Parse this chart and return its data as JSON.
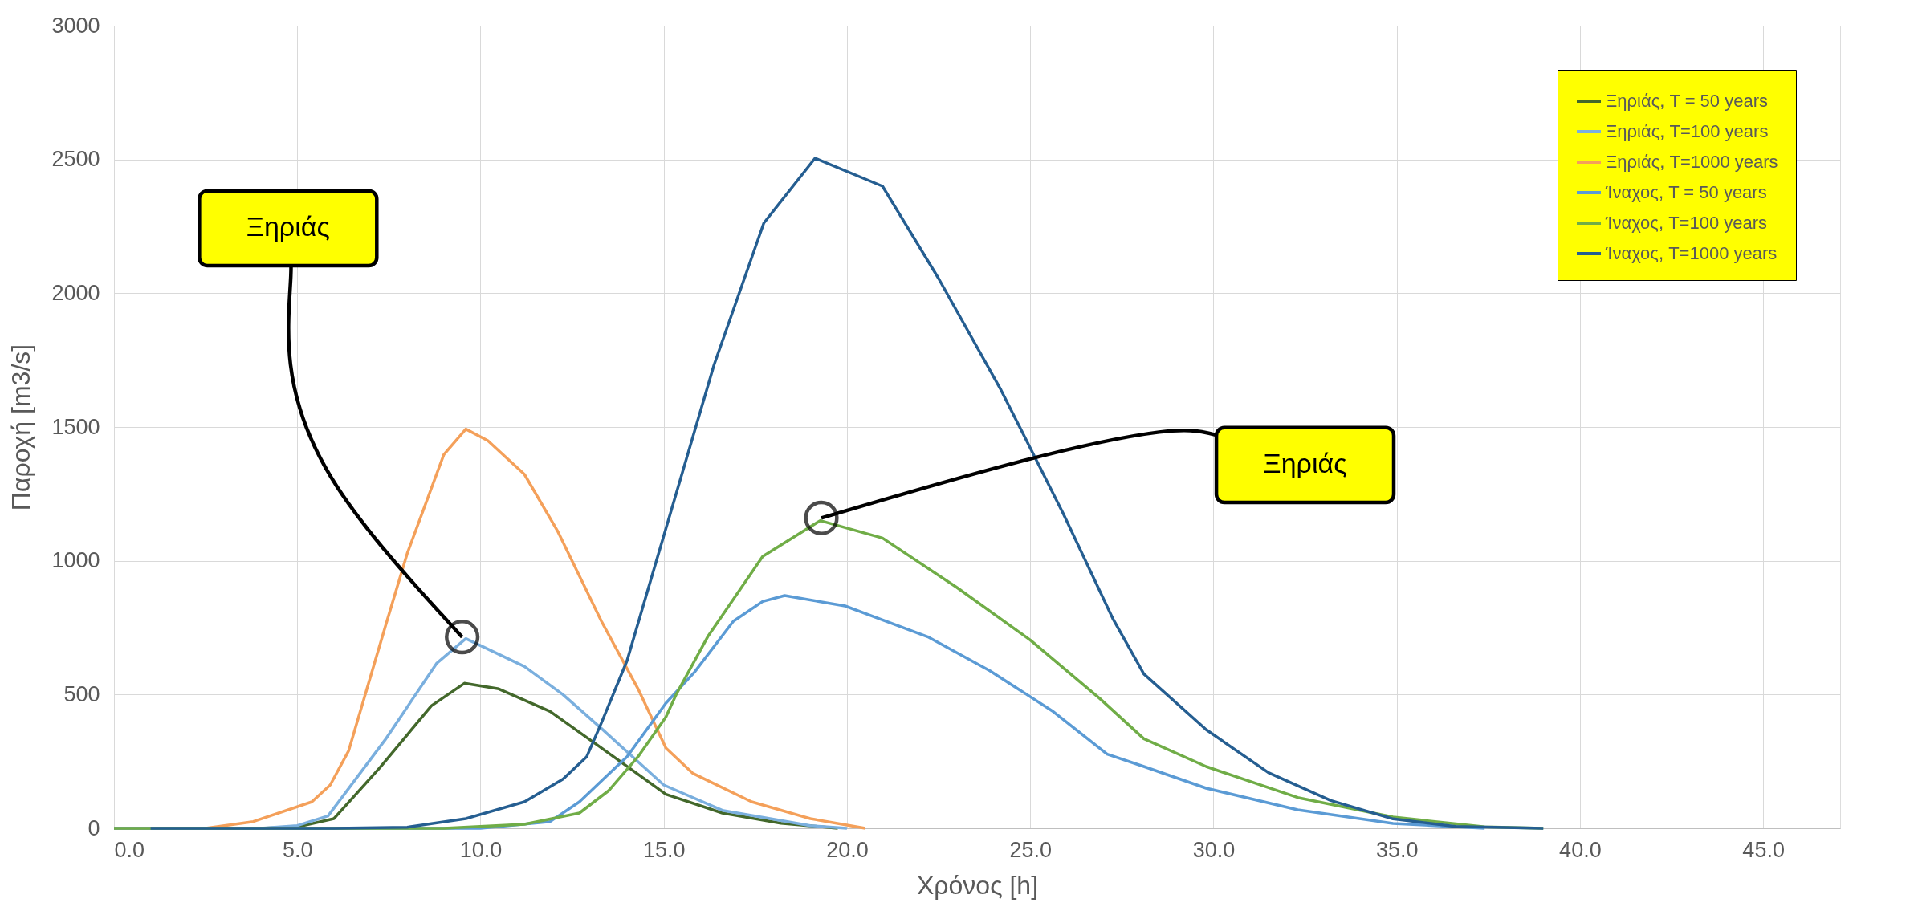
{
  "chart_data": {
    "type": "line",
    "xlabel": "Χρόνος [h]",
    "ylabel": "Παροχή [m3/s]",
    "xlim": [
      0,
      47.1
    ],
    "xticks": [
      {
        "value": 0,
        "label": "0.0"
      },
      {
        "value": 5,
        "label": "5.0"
      },
      {
        "value": 10,
        "label": "10.0"
      },
      {
        "value": 15,
        "label": "15.0"
      },
      {
        "value": 20,
        "label": "20.0"
      },
      {
        "value": 25,
        "label": "25.0"
      },
      {
        "value": 30,
        "label": "30.0"
      },
      {
        "value": 35,
        "label": "35.0"
      },
      {
        "value": 40,
        "label": "40.0"
      },
      {
        "value": 45,
        "label": "45.0"
      }
    ],
    "ylim": [
      0,
      3000
    ],
    "yticks": [
      0,
      500,
      1000,
      1500,
      2000,
      2500,
      3000
    ],
    "grid": true,
    "legend": "top right",
    "marker": "none",
    "line_style": "solid",
    "annotations": [
      {
        "text": "Ξηριάς",
        "x": 9.5,
        "y": 715
      },
      {
        "text": "Ξηριάς",
        "x": 19.3,
        "y": 1160
      }
    ],
    "series": [
      {
        "name": "Ξηριάς, T = 50 years",
        "color": "#43682b",
        "x": [
          0,
          4,
          5,
          6.0,
          7.25,
          8.66,
          9.56,
          10.5,
          11.9,
          13.2,
          15.06,
          16.6,
          18.2,
          19.75
        ],
        "values": [
          0,
          0,
          5,
          36,
          226,
          458,
          542,
          521,
          437,
          310,
          127,
          57,
          19,
          0
        ]
      },
      {
        "name": "Ξηριάς, T=100 years",
        "color": "#7aafde",
        "x": [
          0,
          4,
          5,
          5.84,
          7.4,
          8.8,
          9.6,
          11.2,
          12.25,
          13.3,
          15.0,
          16.6,
          19.0,
          20.0
        ],
        "values": [
          0,
          0,
          10,
          46,
          331,
          616,
          709,
          605,
          500,
          373,
          162,
          67,
          10,
          0
        ]
      },
      {
        "name": "Ξηριάς, T=1000 years",
        "color": "#f4a05a",
        "x": [
          0,
          2.5,
          3.8,
          5.4,
          5.9,
          6.4,
          7.4,
          8.0,
          9.0,
          9.6,
          10.2,
          11.2,
          12.1,
          13.3,
          14.3,
          15.06,
          15.8,
          17.4,
          19.0,
          20.5
        ],
        "values": [
          0,
          0,
          25,
          99,
          162,
          289,
          753,
          1027,
          1397,
          1492,
          1449,
          1323,
          1112,
          774,
          521,
          300,
          205,
          99,
          36,
          0
        ]
      },
      {
        "name": "Ίναχος, T = 50 years",
        "color": "#5b9bd5",
        "x": [
          0,
          10,
          11.9,
          12.7,
          14.0,
          15.06,
          15.84,
          16.9,
          17.7,
          18.3,
          19.95,
          22.2,
          23.9,
          25.6,
          27.1,
          28.1,
          29.8,
          32.3,
          34.9,
          37.4
        ],
        "values": [
          0,
          0,
          25,
          99,
          268,
          468,
          584,
          774,
          848,
          870,
          831,
          716,
          589,
          439,
          277,
          231,
          150,
          69,
          18,
          0
        ]
      },
      {
        "name": "Ίναχος, T=100 years",
        "color": "#70ad47",
        "x": [
          0,
          9,
          11.2,
          12.7,
          13.5,
          14.3,
          15.06,
          15.35,
          16.2,
          17.7,
          19.27,
          20.97,
          23.0,
          25.0,
          26.9,
          28.1,
          29.8,
          32.3,
          34.9,
          37.4,
          39.0
        ],
        "values": [
          0,
          0,
          15,
          57,
          141,
          268,
          416,
          503,
          716,
          1016,
          1150,
          1085,
          900,
          704,
          485,
          335,
          231,
          115,
          42,
          5,
          0
        ]
      },
      {
        "name": "Ίναχος, T=1000 years",
        "color": "#255e91",
        "x": [
          1,
          6,
          8.0,
          9.6,
          11.2,
          12.25,
          12.9,
          13.3,
          14.0,
          16.37,
          17.73,
          19.13,
          20.97,
          22.5,
          24.2,
          25.9,
          27.25,
          28.1,
          29.8,
          31.5,
          33.2,
          34.9,
          36.6,
          39.0
        ],
        "values": [
          0,
          0,
          4,
          36,
          99,
          184,
          268,
          394,
          627,
          1731,
          2262,
          2505,
          2400,
          2055,
          1639,
          1177,
          785,
          577,
          369,
          208,
          104,
          35,
          7,
          0
        ]
      }
    ]
  }
}
